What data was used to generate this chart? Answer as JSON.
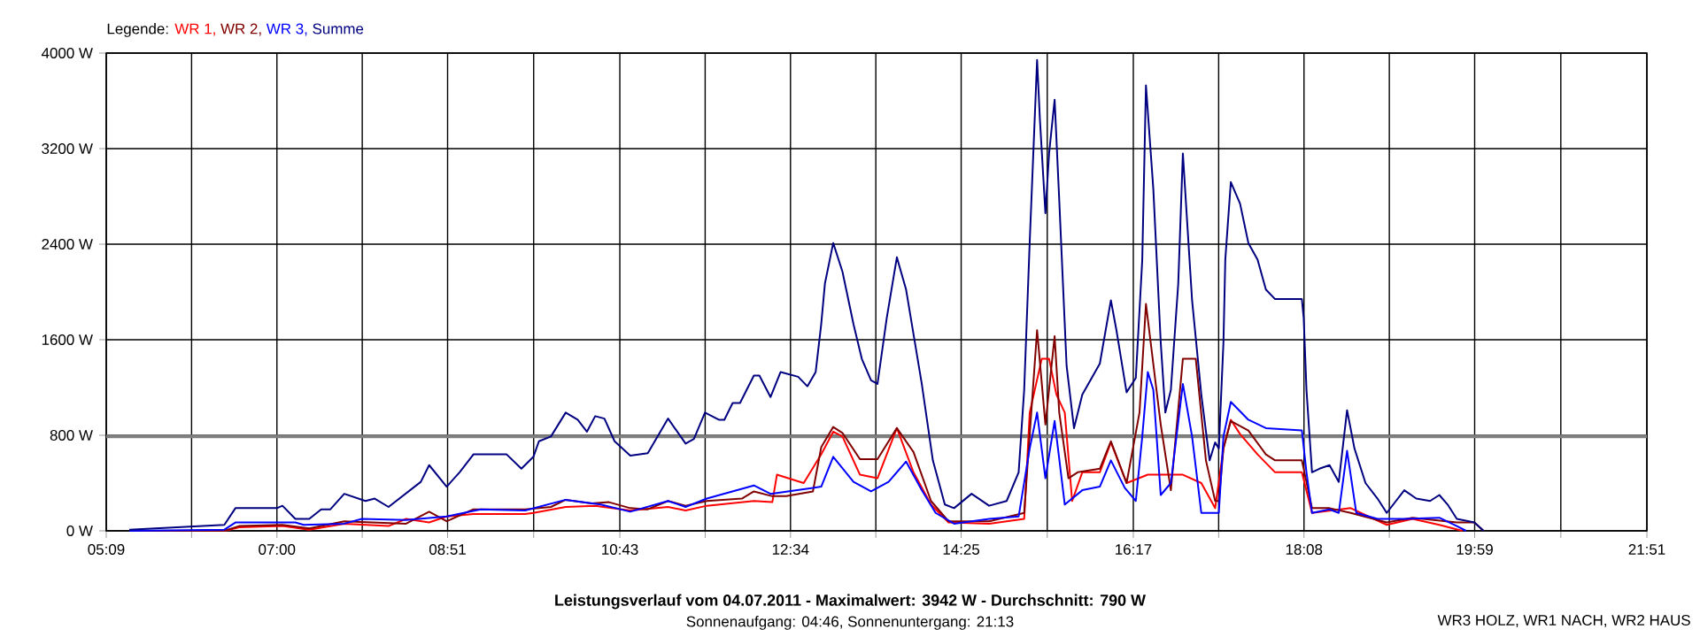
{
  "chart_data": {
    "type": "line",
    "title": "Leistungsverlauf vom 04.07.2011 - Maximalwert: 3942 W - Durchschnitt: 790 W",
    "subtitle": "Sonnenaufgang: 04:46, Sonnenuntergang: 21:13",
    "annotations": [
      "WR3 HOLZ, WR1 NACH, WR2 HAUS"
    ],
    "legend_title": "Legende:",
    "legend": "top left",
    "grid": true,
    "xlim": [
      5.15,
      21.85
    ],
    "ylim": [
      0,
      4000
    ],
    "xticks": [
      {
        "value": 5.15,
        "label": "05:09"
      },
      {
        "value": 6.075,
        "label": null
      },
      {
        "value": 7,
        "label": "07:00"
      },
      {
        "value": 7.925,
        "label": null
      },
      {
        "value": 8.85,
        "label": "08:51"
      },
      {
        "value": 9.783,
        "label": null
      },
      {
        "value": 10.717,
        "label": "10:43"
      },
      {
        "value": 11.642,
        "label": null
      },
      {
        "value": 12.567,
        "label": "12:34"
      },
      {
        "value": 13.492,
        "label": null
      },
      {
        "value": 14.417,
        "label": "14:25"
      },
      {
        "value": 15.35,
        "label": null
      },
      {
        "value": 16.283,
        "label": "16:17"
      },
      {
        "value": 17.208,
        "label": null
      },
      {
        "value": 18.133,
        "label": "18:08"
      },
      {
        "value": 19.058,
        "label": null
      },
      {
        "value": 19.983,
        "label": "19:59"
      },
      {
        "value": 20.917,
        "label": null
      },
      {
        "value": 21.85,
        "label": "21:51"
      }
    ],
    "yticks": [
      {
        "value": 0,
        "label": "0 W"
      },
      {
        "value": 800,
        "label": "800 W"
      },
      {
        "value": 1600,
        "label": "1600 W"
      },
      {
        "value": 2400,
        "label": "2400 W"
      },
      {
        "value": 3200,
        "label": "3200 W"
      },
      {
        "value": 4000,
        "label": "4000 W"
      }
    ],
    "ref_lines": [
      {
        "axis": "y",
        "value": 790,
        "color": "#808080"
      }
    ],
    "series": [
      {
        "name": "WR 1,",
        "color": "#ff0000",
        "x": [
          5.4,
          6.43,
          6.59,
          7.06,
          7.35,
          7.73,
          8.21,
          8.4,
          8.65,
          8.84,
          9.13,
          9.69,
          9.78,
          10.13,
          10.45,
          10.83,
          11.24,
          11.43,
          11.66,
          12.17,
          12.37,
          12.42,
          12.71,
          12.9,
          13.03,
          13.13,
          13.32,
          13.51,
          13.72,
          13.9,
          14.09,
          14.28,
          14.72,
          15.1,
          15.16,
          15.29,
          15.37,
          15.45,
          15.54,
          15.62,
          15.73,
          15.92,
          16.04,
          16.21,
          16.44,
          16.82,
          17.02,
          17.17,
          17.26,
          17.34,
          17.44,
          17.63,
          17.82,
          18.11,
          18.22,
          18.64,
          19.03,
          19.31,
          19.6,
          19.85
        ],
        "values": [
          0,
          0,
          30,
          40,
          10,
          60,
          40,
          100,
          70,
          120,
          140,
          140,
          150,
          200,
          210,
          170,
          200,
          170,
          210,
          250,
          240,
          470,
          400,
          640,
          830,
          790,
          470,
          440,
          860,
          490,
          220,
          70,
          60,
          100,
          990,
          1440,
          1440,
          1140,
          990,
          250,
          490,
          490,
          740,
          400,
          470,
          470,
          400,
          190,
          690,
          930,
          810,
          640,
          490,
          490,
          150,
          190,
          50,
          100,
          50,
          0
        ]
      },
      {
        "name": "WR 2,",
        "color": "#800000",
        "x": [
          5.4,
          6.43,
          6.59,
          7.06,
          7.35,
          7.73,
          8.4,
          8.65,
          8.84,
          9.13,
          9.69,
          9.97,
          10.13,
          10.41,
          10.6,
          10.83,
          11.02,
          11.24,
          11.43,
          11.66,
          12.04,
          12.17,
          12.37,
          12.52,
          12.81,
          12.9,
          13.03,
          13.13,
          13.32,
          13.51,
          13.72,
          13.9,
          14.09,
          14.28,
          14.72,
          15.1,
          15.24,
          15.33,
          15.43,
          15.48,
          15.58,
          15.68,
          15.92,
          16.04,
          16.21,
          16.35,
          16.42,
          16.58,
          16.69,
          16.82,
          16.96,
          17.07,
          17.17,
          17.21,
          17.26,
          17.34,
          17.53,
          17.72,
          17.82,
          18.11,
          18.22,
          18.41,
          18.64,
          19.03,
          19.31,
          19.79,
          19.98,
          20.08
        ],
        "values": [
          0,
          0,
          40,
          50,
          20,
          80,
          60,
          160,
          80,
          180,
          180,
          200,
          260,
          230,
          240,
          190,
          180,
          250,
          210,
          250,
          270,
          330,
          290,
          290,
          330,
          700,
          870,
          820,
          600,
          600,
          860,
          660,
          250,
          80,
          80,
          150,
          1680,
          890,
          1630,
          990,
          440,
          490,
          520,
          750,
          400,
          990,
          1900,
          890,
          340,
          1440,
          1440,
          590,
          250,
          250,
          690,
          920,
          840,
          640,
          590,
          590,
          190,
          190,
          150,
          70,
          110,
          70,
          70,
          0
        ]
      },
      {
        "name": "WR 3,",
        "color": "#0000ff",
        "x": [
          5.4,
          6.43,
          6.55,
          7.2,
          7.29,
          7.73,
          7.92,
          8.4,
          8.84,
          9.21,
          9.69,
          10.13,
          10.51,
          10.83,
          11.24,
          11.43,
          11.66,
          12.17,
          12.35,
          12.81,
          12.9,
          13.03,
          13.25,
          13.44,
          13.63,
          13.82,
          13.99,
          14.14,
          14.34,
          14.72,
          15.04,
          15.16,
          15.24,
          15.33,
          15.43,
          15.54,
          15.73,
          15.92,
          16.04,
          16.19,
          16.31,
          16.38,
          16.44,
          16.5,
          16.58,
          16.69,
          16.82,
          16.92,
          17.02,
          17.21,
          17.26,
          17.34,
          17.53,
          17.72,
          18.11,
          18.16,
          18.22,
          18.41,
          18.51,
          18.6,
          18.7,
          18.93,
          19.22,
          19.6,
          19.79,
          19.89
        ],
        "values": [
          0,
          10,
          70,
          70,
          50,
          60,
          100,
          90,
          120,
          180,
          170,
          260,
          220,
          160,
          250,
          200,
          270,
          380,
          310,
          360,
          370,
          620,
          410,
          330,
          410,
          580,
          340,
          150,
          60,
          100,
          120,
          690,
          990,
          440,
          920,
          220,
          340,
          370,
          590,
          360,
          250,
          790,
          1330,
          1180,
          300,
          400,
          1230,
          790,
          150,
          150,
          790,
          1080,
          930,
          860,
          840,
          490,
          150,
          180,
          150,
          670,
          150,
          100,
          100,
          110,
          40,
          0
        ]
      },
      {
        "name": "Summe",
        "color": "#000080",
        "x": [
          5.4,
          6.43,
          6.55,
          7.0,
          7.06,
          7.2,
          7.35,
          7.48,
          7.58,
          7.73,
          7.96,
          8.06,
          8.21,
          8.56,
          8.65,
          8.84,
          8.98,
          9.13,
          9.49,
          9.65,
          9.78,
          9.84,
          9.97,
          10.13,
          10.26,
          10.36,
          10.45,
          10.55,
          10.66,
          10.83,
          11.02,
          11.24,
          11.43,
          11.52,
          11.64,
          11.79,
          11.85,
          11.94,
          12.02,
          12.17,
          12.23,
          12.35,
          12.46,
          12.65,
          12.75,
          12.84,
          12.9,
          12.94,
          13.03,
          13.13,
          13.25,
          13.34,
          13.44,
          13.51,
          13.61,
          13.72,
          13.82,
          13.99,
          14.11,
          14.24,
          14.34,
          14.53,
          14.72,
          14.91,
          15.04,
          15.1,
          15.16,
          15.24,
          15.27,
          15.33,
          15.37,
          15.43,
          15.48,
          15.56,
          15.64,
          15.73,
          15.92,
          16.04,
          16.1,
          16.21,
          16.31,
          16.38,
          16.42,
          16.5,
          16.58,
          16.63,
          16.69,
          16.77,
          16.82,
          16.92,
          17.02,
          17.11,
          17.17,
          17.21,
          17.26,
          17.28,
          17.34,
          17.44,
          17.53,
          17.63,
          17.72,
          17.82,
          18.11,
          18.13,
          18.16,
          18.22,
          18.3,
          18.41,
          18.51,
          18.6,
          18.68,
          18.8,
          18.93,
          19.03,
          19.22,
          19.35,
          19.5,
          19.6,
          19.69,
          19.79,
          19.98,
          20.08
        ],
        "values": [
          10,
          50,
          190,
          190,
          210,
          100,
          100,
          180,
          180,
          310,
          250,
          270,
          200,
          410,
          550,
          370,
          490,
          640,
          640,
          520,
          620,
          750,
          790,
          990,
          930,
          830,
          960,
          940,
          750,
          630,
          650,
          940,
          730,
          770,
          990,
          930,
          930,
          1070,
          1070,
          1300,
          1300,
          1120,
          1330,
          1290,
          1210,
          1330,
          1730,
          2070,
          2410,
          2170,
          1730,
          1440,
          1260,
          1230,
          1780,
          2290,
          2020,
          1230,
          590,
          220,
          190,
          310,
          210,
          250,
          490,
          1180,
          2420,
          3942,
          3450,
          2660,
          3160,
          3610,
          2770,
          1380,
          860,
          1140,
          1400,
          1930,
          1680,
          1160,
          1280,
          2270,
          3730,
          2860,
          1580,
          990,
          1180,
          2070,
          3160,
          1930,
          1140,
          590,
          740,
          690,
          1580,
          2270,
          2920,
          2740,
          2410,
          2270,
          2020,
          1940,
          1940,
          1780,
          1180,
          490,
          520,
          550,
          410,
          1010,
          690,
          400,
          270,
          150,
          340,
          270,
          250,
          300,
          220,
          100,
          70,
          0
        ]
      }
    ]
  }
}
